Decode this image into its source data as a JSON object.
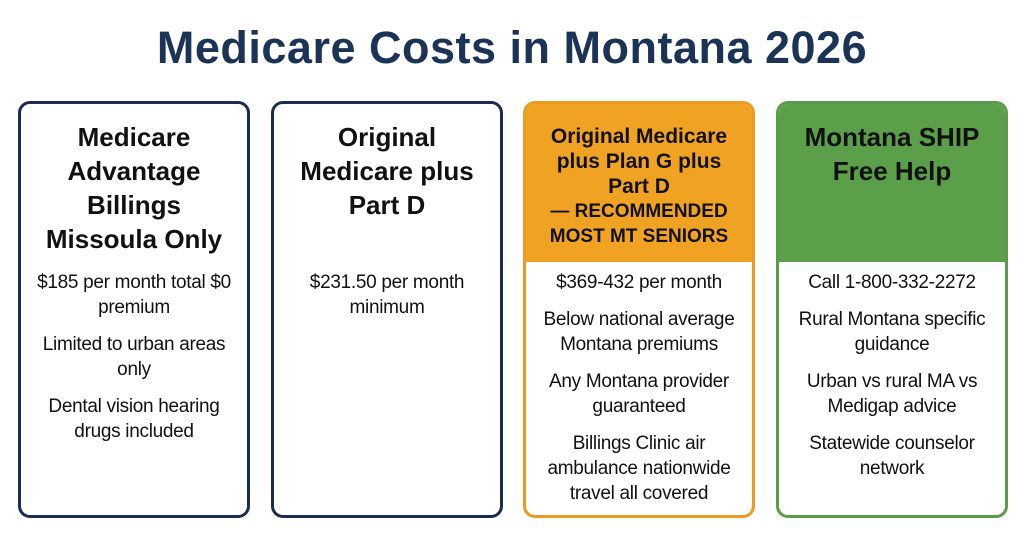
{
  "title": "Medicare Costs in Montana 2026",
  "cards": [
    {
      "heading": "Medicare Advantage Billings Missoula Only",
      "items": [
        "$185 per month total $0 premium",
        "Limited to urban areas only",
        "Dental vision hearing drugs included"
      ]
    },
    {
      "heading": "Original Medicare plus Part D",
      "items": [
        "$231.50 per month minimum"
      ]
    },
    {
      "heading": "Original Medicare plus Plan G plus Part D",
      "note": "— RECOMMENDED MOST MT SENIORS",
      "items": [
        "$369-432 per month",
        "Below national average Montana premiums",
        "Any Montana provider guaranteed",
        "Billings Clinic air ambulance nationwide travel all covered"
      ]
    },
    {
      "heading": "Montana SHIP Free Help",
      "items": [
        "Call 1-800-332-2272",
        "Rural Montana specific guidance",
        "Urban vs rural MA vs Medigap advice",
        "Statewide counselor network"
      ]
    }
  ]
}
